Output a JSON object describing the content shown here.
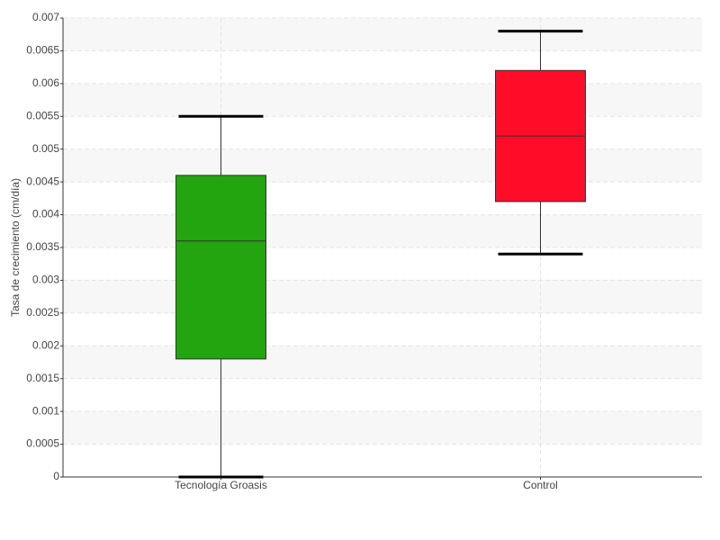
{
  "chart_data": {
    "type": "box",
    "y_label": "Tasa de crecimiento (cm/día)",
    "categories": [
      "Tecnología Groasis",
      "Control"
    ],
    "boxes": [
      {
        "min": 0,
        "q1": 0.0018,
        "median": 0.0036,
        "q3": 0.0046,
        "max": 0.0055,
        "color": "#22a50e"
      },
      {
        "min": 0.0034,
        "q1": 0.0042,
        "median": 0.0052,
        "q3": 0.0062,
        "max": 0.0068,
        "color": "#ff0d28"
      }
    ],
    "ylim": [
      0,
      0.007
    ],
    "yticks": [
      0,
      0.0005,
      0.001,
      0.0015,
      0.002,
      0.0025,
      0.003,
      0.0035,
      0.004,
      0.0045,
      0.005,
      0.0055,
      0.006,
      0.0065,
      0.007
    ],
    "grid": true
  }
}
